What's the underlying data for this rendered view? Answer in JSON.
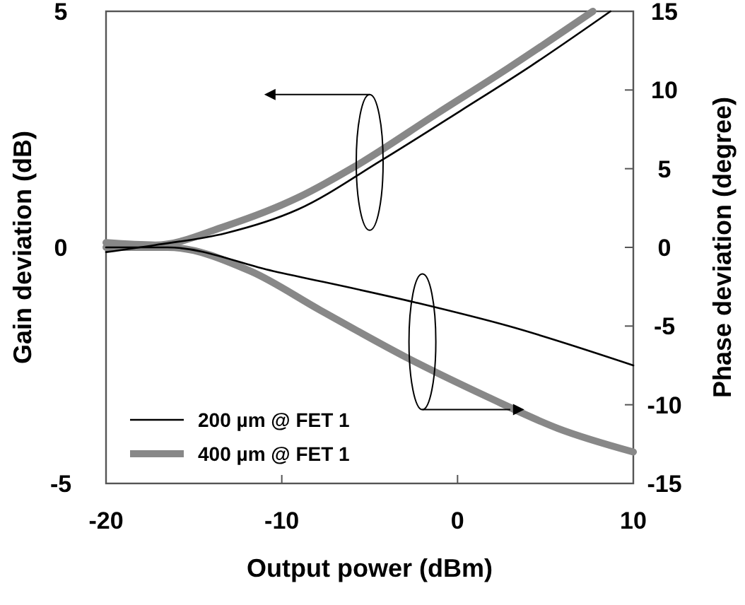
{
  "chart_data": {
    "type": "line",
    "xlabel": "Output power (dBm)",
    "ylabel": "Gain deviation (dB)",
    "y2label": "Phase deviation (degree)",
    "xlim": [
      -20,
      10
    ],
    "xticks": [
      -20,
      -10,
      0,
      10
    ],
    "ylim": [
      -5,
      5
    ],
    "yticks": [
      -5,
      0,
      5
    ],
    "y2lim": [
      -15,
      15
    ],
    "y2ticks": [
      -15,
      -10,
      -5,
      0,
      5,
      10,
      15
    ],
    "grid": false,
    "legend": "bottom left",
    "marker": "none",
    "line_style": "solid",
    "series": [
      {
        "name": "200 µm @ FET 1",
        "color": "#000000",
        "x": [
          -20,
          -17.2,
          -13.2,
          -9.1,
          -4.3,
          0.2,
          4.2,
          8.7
        ],
        "values": [
          -0.1,
          0.05,
          0.3,
          0.8,
          1.85,
          2.9,
          3.85,
          5.0
        ]
      },
      {
        "name": "400 µm @ FET 1",
        "color": "#888888",
        "x": [
          -20,
          -17.2,
          -13.2,
          -9.1,
          -5.9,
          -1.1,
          2.9,
          7.7
        ],
        "values": [
          0.1,
          0.05,
          0.45,
          1.05,
          1.7,
          2.85,
          3.8,
          5.0
        ]
      },
      {
        "color": "#000000",
        "axis": "y2",
        "x": [
          -20,
          -16.5,
          -10.5,
          -2.4,
          2.9,
          10
        ],
        "values": [
          0,
          0,
          -1.5,
          -3.5,
          -5,
          -7.5
        ]
      },
      {
        "color": "#888888",
        "axis": "y2",
        "x": [
          -20,
          -16.5,
          -11.8,
          -7.8,
          -2.9,
          1.7,
          5.7,
          10
        ],
        "values": [
          0,
          0,
          -1.5,
          -4,
          -7,
          -9.5,
          -11.5,
          -13
        ]
      }
    ]
  }
}
